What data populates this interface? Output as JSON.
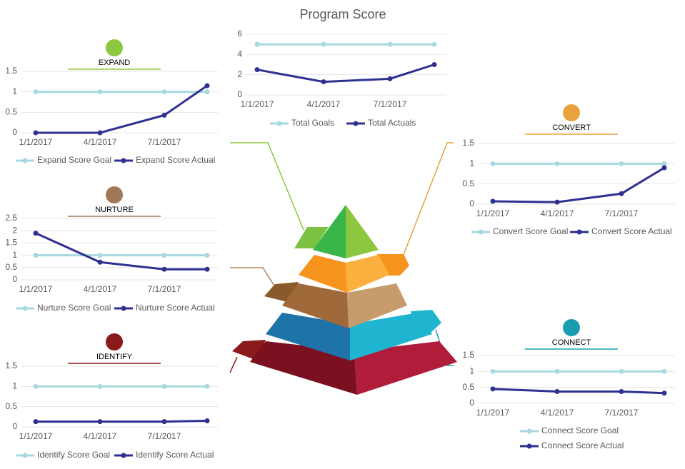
{
  "chart_data": [
    {
      "type": "line",
      "title": "Program Score",
      "categories": [
        "1/1/2017",
        "4/1/2017",
        "7/1/2017",
        null
      ],
      "ylim": [
        0,
        6
      ],
      "yticks": [
        0,
        2,
        4,
        6
      ],
      "grid": true,
      "series": [
        {
          "name": "Total Goals",
          "color": "#a8d8e0",
          "values": [
            5,
            5,
            5,
            5
          ]
        },
        {
          "name": "Total Actuals",
          "color": "#2e3192",
          "values": [
            2.5,
            1.3,
            1.6,
            3
          ]
        }
      ]
    },
    {
      "type": "line",
      "heading": "EXPAND",
      "categories": [
        "1/1/2017",
        "4/1/2017",
        "7/1/2017",
        null
      ],
      "ylim": [
        0,
        1.5
      ],
      "yticks": [
        0,
        0.5,
        1,
        1.5
      ],
      "grid": true,
      "series": [
        {
          "name": "Expand Score Goal",
          "color": "#a8d8e0",
          "values": [
            1,
            1,
            1,
            1
          ]
        },
        {
          "name": "Expand Score Actual",
          "color": "#2e3192",
          "values": [
            0,
            0,
            0.43,
            1.15
          ]
        }
      ]
    },
    {
      "type": "line",
      "heading": "NURTURE",
      "categories": [
        "1/1/2017",
        "4/1/2017",
        "7/1/2017",
        null
      ],
      "ylim": [
        0,
        2.5
      ],
      "yticks": [
        0,
        0.5,
        1,
        1.5,
        2,
        2.5
      ],
      "grid": true,
      "series": [
        {
          "name": "Nurture Score Goal",
          "color": "#a8d8e0",
          "values": [
            1,
            1,
            1,
            1
          ]
        },
        {
          "name": "Nurture Score Actual",
          "color": "#2e3192",
          "values": [
            1.9,
            0.72,
            0.43,
            0.43
          ]
        }
      ]
    },
    {
      "type": "line",
      "heading": "IDENTIFY",
      "categories": [
        "1/1/2017",
        "4/1/2017",
        "7/1/2017",
        null
      ],
      "ylim": [
        0,
        1.5
      ],
      "yticks": [
        0,
        0.5,
        1,
        1.5
      ],
      "grid": true,
      "series": [
        {
          "name": "Identify Score Goal",
          "color": "#a8d8e0",
          "values": [
            1,
            1,
            1,
            1
          ]
        },
        {
          "name": "Identify Score Actual",
          "color": "#2e3192",
          "values": [
            0.13,
            0.13,
            0.13,
            0.15
          ]
        }
      ]
    },
    {
      "type": "line",
      "heading": "CONVERT",
      "categories": [
        "1/1/2017",
        "4/1/2017",
        "7/1/2017",
        null
      ],
      "ylim": [
        0,
        1.5
      ],
      "yticks": [
        0,
        0.5,
        1,
        1.5
      ],
      "grid": true,
      "series": [
        {
          "name": "Convert Score Goal",
          "color": "#a8d8e0",
          "values": [
            1,
            1,
            1,
            1
          ]
        },
        {
          "name": "Convert Score Actual",
          "color": "#2e3192",
          "values": [
            0.07,
            0.05,
            0.26,
            0.9
          ]
        }
      ]
    },
    {
      "type": "line",
      "heading": "CONNECT",
      "categories": [
        "1/1/2017",
        "4/1/2017",
        "7/1/2017",
        null
      ],
      "ylim": [
        0,
        1.5
      ],
      "yticks": [
        0,
        0.5,
        1,
        1.5
      ],
      "grid": true,
      "series": [
        {
          "name": "Connect Score Goal",
          "color": "#a8d8e0",
          "values": [
            1,
            1,
            1,
            1
          ]
        },
        {
          "name": "Connect Score Actual",
          "color": "#2e3192",
          "values": [
            0.45,
            0.37,
            0.37,
            0.32
          ]
        }
      ]
    }
  ]
}
